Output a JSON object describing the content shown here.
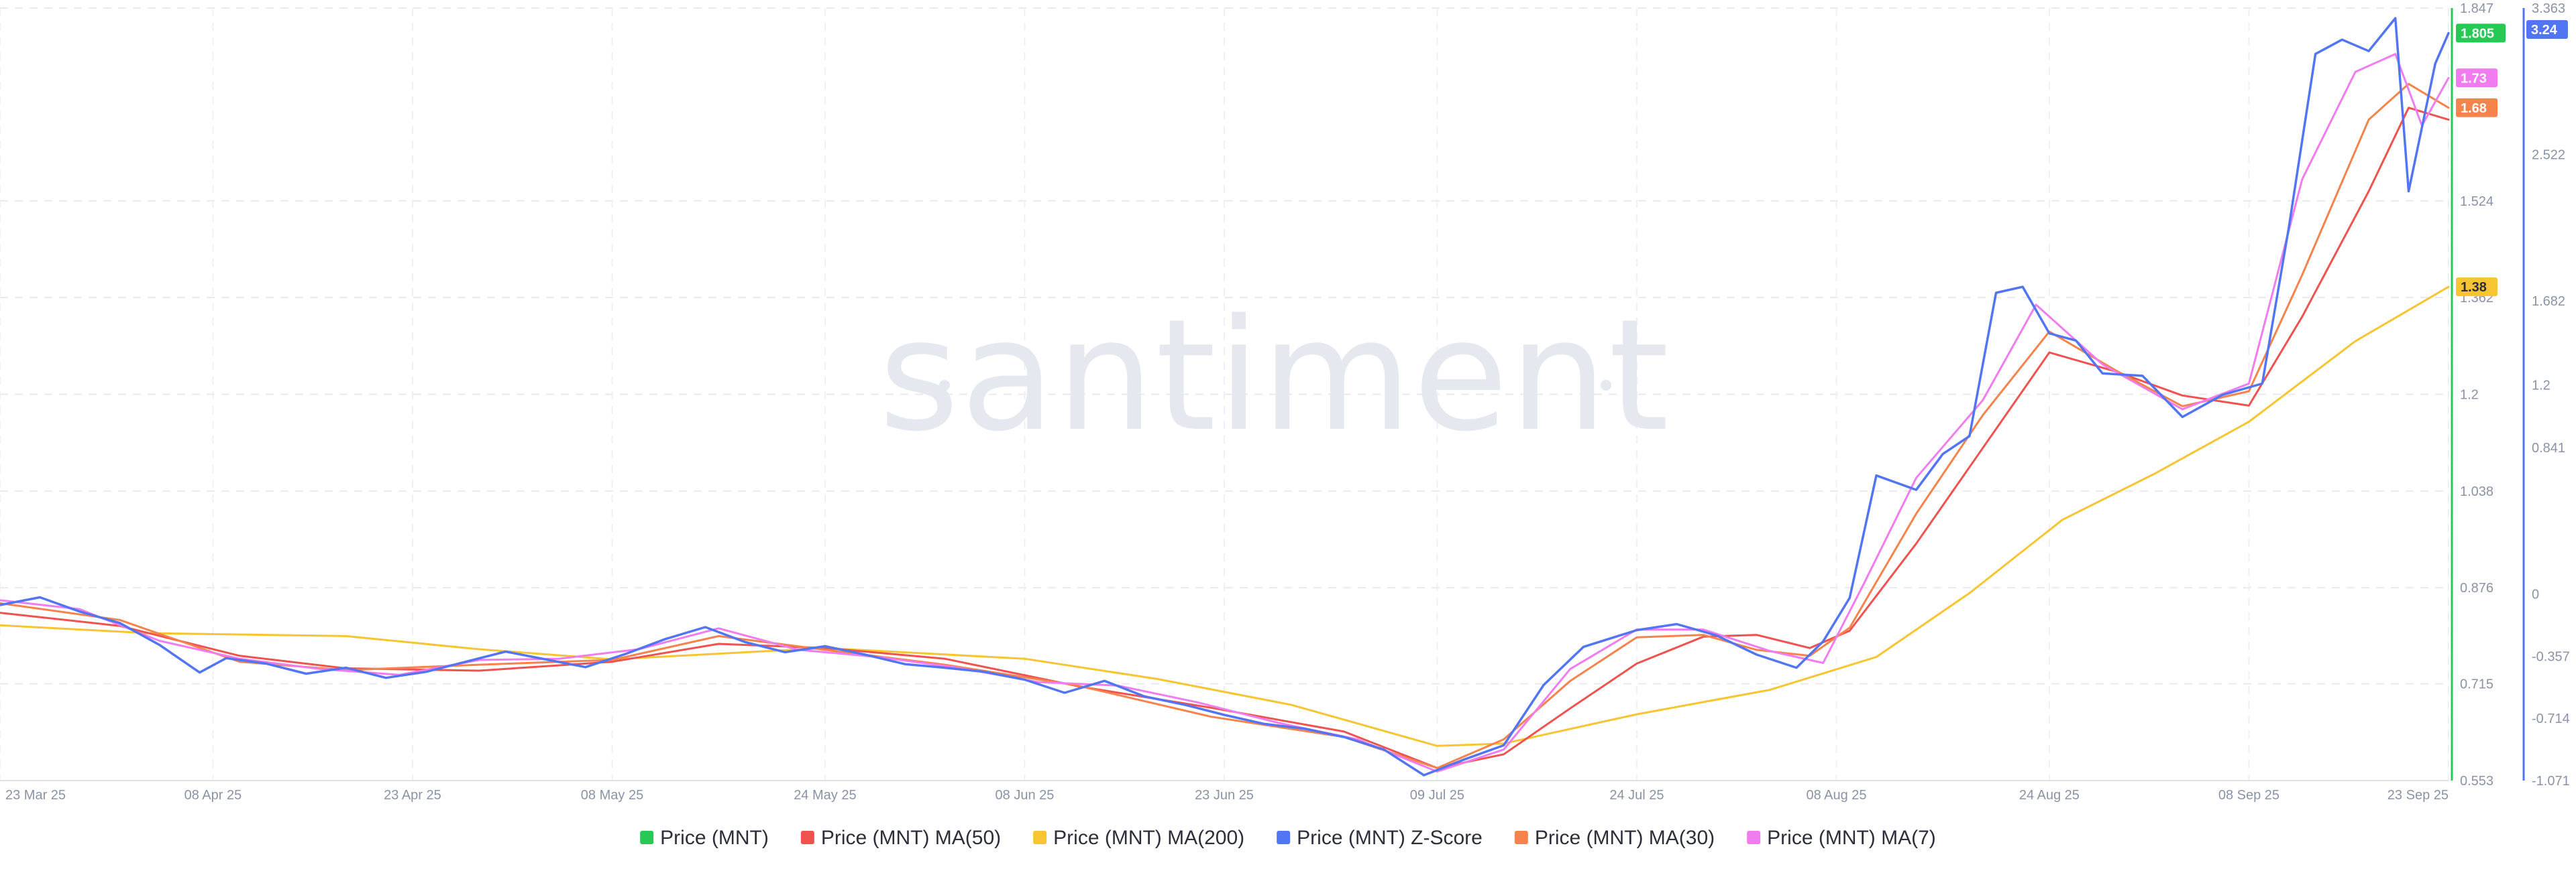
{
  "watermark": "santiment",
  "chart_data": {
    "type": "line",
    "grid": true,
    "legend_position": "bottom",
    "x_range": [
      "2025-03-23",
      "2025-09-23"
    ],
    "x_ticks": [
      {
        "date": "2025-03-23",
        "label": "23 Mar 25"
      },
      {
        "date": "2025-04-08",
        "label": "08 Apr 25"
      },
      {
        "date": "2025-04-23",
        "label": "23 Apr 25"
      },
      {
        "date": "2025-05-08",
        "label": "08 May 25"
      },
      {
        "date": "2025-05-24",
        "label": "24 May 25"
      },
      {
        "date": "2025-06-08",
        "label": "08 Jun 25"
      },
      {
        "date": "2025-06-23",
        "label": "23 Jun 25"
      },
      {
        "date": "2025-07-09",
        "label": "09 Jul 25"
      },
      {
        "date": "2025-07-24",
        "label": "24 Jul 25"
      },
      {
        "date": "2025-08-08",
        "label": "08 Aug 25"
      },
      {
        "date": "2025-08-24",
        "label": "24 Aug 25"
      },
      {
        "date": "2025-09-08",
        "label": "08 Sep 25"
      },
      {
        "date": "2025-09-23",
        "label": "23 Sep 25"
      }
    ],
    "price_axis": {
      "range": [
        0.553,
        1.847
      ],
      "ticks": [
        "0.553",
        "0.715",
        "0.876",
        "1.038",
        "1.2",
        "1.362",
        "1.524",
        "1.847"
      ],
      "color": "#26c953"
    },
    "zscore_axis": {
      "range": [
        -1.071,
        3.363
      ],
      "ticks": [
        "-1.071",
        "-0.714",
        "-0.357",
        "0",
        "0.841",
        "1.2",
        "1.682",
        "2.522",
        "3.363"
      ],
      "color": "#5275f4"
    },
    "badges": [
      {
        "text": "1.805",
        "value": 1.805,
        "axis": "price",
        "color": "#26c953"
      },
      {
        "text": "1.73",
        "value": 1.73,
        "axis": "price",
        "color": "#f07cf0"
      },
      {
        "text": "1.68",
        "value": 1.68,
        "axis": "price",
        "color": "#f5834b"
      },
      {
        "text": "1.38",
        "value": 1.38,
        "axis": "price",
        "color": "#f7c531"
      },
      {
        "text": "3.24",
        "value": 3.24,
        "axis": "zscore",
        "color": "#5275f4"
      }
    ],
    "series": [
      {
        "name": "Price (MNT)",
        "color": "#26c953",
        "axis": "price",
        "points": []
      },
      {
        "name": "Price (MNT) MA(50)",
        "color": "#f0524f",
        "axis": "price",
        "points": [
          [
            "2025-03-23",
            0.834
          ],
          [
            "2025-04-01",
            0.812
          ],
          [
            "2025-04-10",
            0.762
          ],
          [
            "2025-04-18",
            0.741
          ],
          [
            "2025-04-28",
            0.737
          ],
          [
            "2025-05-08",
            0.752
          ],
          [
            "2025-05-16",
            0.782
          ],
          [
            "2025-05-24",
            0.775
          ],
          [
            "2025-06-02",
            0.757
          ],
          [
            "2025-06-12",
            0.711
          ],
          [
            "2025-06-22",
            0.675
          ],
          [
            "2025-07-02",
            0.635
          ],
          [
            "2025-07-09",
            0.574
          ],
          [
            "2025-07-14",
            0.597
          ],
          [
            "2025-07-19",
            0.674
          ],
          [
            "2025-07-24",
            0.749
          ],
          [
            "2025-07-29",
            0.794
          ],
          [
            "2025-08-02",
            0.797
          ],
          [
            "2025-08-06",
            0.775
          ],
          [
            "2025-08-09",
            0.804
          ],
          [
            "2025-08-14",
            0.95
          ],
          [
            "2025-08-19",
            1.11
          ],
          [
            "2025-08-24",
            1.27
          ],
          [
            "2025-08-29",
            1.238
          ],
          [
            "2025-09-03",
            1.198
          ],
          [
            "2025-09-08",
            1.181
          ],
          [
            "2025-09-12",
            1.33
          ],
          [
            "2025-09-17",
            1.54
          ],
          [
            "2025-09-20",
            1.68
          ],
          [
            "2025-09-23",
            1.66
          ]
        ]
      },
      {
        "name": "Price (MNT) MA(200)",
        "color": "#f7c531",
        "axis": "price",
        "points": [
          [
            "2025-03-23",
            0.813
          ],
          [
            "2025-04-03",
            0.8
          ],
          [
            "2025-04-18",
            0.795
          ],
          [
            "2025-04-28",
            0.773
          ],
          [
            "2025-05-08",
            0.756
          ],
          [
            "2025-05-24",
            0.775
          ],
          [
            "2025-06-08",
            0.757
          ],
          [
            "2025-06-18",
            0.723
          ],
          [
            "2025-06-28",
            0.68
          ],
          [
            "2025-07-09",
            0.611
          ],
          [
            "2025-07-14",
            0.615
          ],
          [
            "2025-07-24",
            0.664
          ],
          [
            "2025-08-03",
            0.705
          ],
          [
            "2025-08-11",
            0.76
          ],
          [
            "2025-08-18",
            0.867
          ],
          [
            "2025-08-25",
            0.99
          ],
          [
            "2025-09-01",
            1.068
          ],
          [
            "2025-09-08",
            1.154
          ],
          [
            "2025-09-16",
            1.289
          ],
          [
            "2025-09-23",
            1.38
          ]
        ]
      },
      {
        "name": "Price (MNT) Z-Score",
        "color": "#5275f4",
        "axis": "price",
        "points": [
          [
            "2025-03-23",
            0.847
          ],
          [
            "2025-03-26",
            0.86
          ],
          [
            "2025-03-29",
            0.836
          ],
          [
            "2025-04-01",
            0.817
          ],
          [
            "2025-04-04",
            0.78
          ],
          [
            "2025-04-07",
            0.734
          ],
          [
            "2025-04-09",
            0.758
          ],
          [
            "2025-04-12",
            0.749
          ],
          [
            "2025-04-15",
            0.732
          ],
          [
            "2025-04-18",
            0.742
          ],
          [
            "2025-04-21",
            0.725
          ],
          [
            "2025-04-24",
            0.735
          ],
          [
            "2025-04-27",
            0.752
          ],
          [
            "2025-04-30",
            0.769
          ],
          [
            "2025-05-03",
            0.756
          ],
          [
            "2025-05-06",
            0.743
          ],
          [
            "2025-05-09",
            0.765
          ],
          [
            "2025-05-12",
            0.79
          ],
          [
            "2025-05-15",
            0.81
          ],
          [
            "2025-05-18",
            0.785
          ],
          [
            "2025-05-21",
            0.768
          ],
          [
            "2025-05-24",
            0.778
          ],
          [
            "2025-05-27",
            0.764
          ],
          [
            "2025-05-30",
            0.748
          ],
          [
            "2025-06-02",
            0.742
          ],
          [
            "2025-06-05",
            0.735
          ],
          [
            "2025-06-08",
            0.722
          ],
          [
            "2025-06-11",
            0.7
          ],
          [
            "2025-06-14",
            0.72
          ],
          [
            "2025-06-17",
            0.694
          ],
          [
            "2025-06-20",
            0.68
          ],
          [
            "2025-06-23",
            0.663
          ],
          [
            "2025-06-26",
            0.648
          ],
          [
            "2025-06-29",
            0.64
          ],
          [
            "2025-07-02",
            0.626
          ],
          [
            "2025-07-05",
            0.605
          ],
          [
            "2025-07-08",
            0.562
          ],
          [
            "2025-07-11",
            0.588
          ],
          [
            "2025-07-14",
            0.612
          ],
          [
            "2025-07-17",
            0.713
          ],
          [
            "2025-07-20",
            0.777
          ],
          [
            "2025-07-24",
            0.805
          ],
          [
            "2025-07-27",
            0.815
          ],
          [
            "2025-07-30",
            0.796
          ],
          [
            "2025-08-02",
            0.764
          ],
          [
            "2025-08-05",
            0.742
          ],
          [
            "2025-08-07",
            0.786
          ],
          [
            "2025-08-09",
            0.859
          ],
          [
            "2025-08-11",
            1.064
          ],
          [
            "2025-08-14",
            1.04
          ],
          [
            "2025-08-16",
            1.1
          ],
          [
            "2025-08-18",
            1.13
          ],
          [
            "2025-08-20",
            1.37
          ],
          [
            "2025-08-22",
            1.38
          ],
          [
            "2025-08-24",
            1.302
          ],
          [
            "2025-08-26",
            1.29
          ],
          [
            "2025-08-28",
            1.235
          ],
          [
            "2025-08-31",
            1.231
          ],
          [
            "2025-09-03",
            1.162
          ],
          [
            "2025-09-06",
            1.199
          ],
          [
            "2025-09-09",
            1.218
          ],
          [
            "2025-09-11",
            1.48
          ],
          [
            "2025-09-13",
            1.77
          ],
          [
            "2025-09-15",
            1.794
          ],
          [
            "2025-09-17",
            1.775
          ],
          [
            "2025-09-19",
            1.83
          ],
          [
            "2025-09-20",
            1.54
          ],
          [
            "2025-09-22",
            1.754
          ],
          [
            "2025-09-23",
            1.805
          ]
        ]
      },
      {
        "name": "Price (MNT) MA(30)",
        "color": "#f5834b",
        "axis": "price",
        "points": [
          [
            "2025-03-23",
            0.85
          ],
          [
            "2025-04-01",
            0.822
          ],
          [
            "2025-04-10",
            0.752
          ],
          [
            "2025-04-18",
            0.738
          ],
          [
            "2025-04-28",
            0.747
          ],
          [
            "2025-05-08",
            0.755
          ],
          [
            "2025-05-16",
            0.795
          ],
          [
            "2025-05-24",
            0.772
          ],
          [
            "2025-06-02",
            0.747
          ],
          [
            "2025-06-12",
            0.712
          ],
          [
            "2025-06-22",
            0.66
          ],
          [
            "2025-07-02",
            0.626
          ],
          [
            "2025-07-09",
            0.574
          ],
          [
            "2025-07-14",
            0.622
          ],
          [
            "2025-07-19",
            0.72
          ],
          [
            "2025-07-24",
            0.793
          ],
          [
            "2025-07-29",
            0.797
          ],
          [
            "2025-08-02",
            0.772
          ],
          [
            "2025-08-06",
            0.762
          ],
          [
            "2025-08-09",
            0.809
          ],
          [
            "2025-08-14",
            1.0
          ],
          [
            "2025-08-19",
            1.165
          ],
          [
            "2025-08-24",
            1.305
          ],
          [
            "2025-08-29",
            1.24
          ],
          [
            "2025-09-03",
            1.18
          ],
          [
            "2025-09-08",
            1.205
          ],
          [
            "2025-09-12",
            1.4
          ],
          [
            "2025-09-17",
            1.66
          ],
          [
            "2025-09-20",
            1.72
          ],
          [
            "2025-09-23",
            1.68
          ]
        ]
      },
      {
        "name": "Price (MNT) MA(7)",
        "color": "#f07cf0",
        "axis": "price",
        "points": [
          [
            "2025-03-23",
            0.855
          ],
          [
            "2025-03-29",
            0.84
          ],
          [
            "2025-04-04",
            0.787
          ],
          [
            "2025-04-10",
            0.757
          ],
          [
            "2025-04-16",
            0.74
          ],
          [
            "2025-04-22",
            0.73
          ],
          [
            "2025-04-28",
            0.755
          ],
          [
            "2025-05-04",
            0.757
          ],
          [
            "2025-05-10",
            0.773
          ],
          [
            "2025-05-16",
            0.808
          ],
          [
            "2025-05-22",
            0.772
          ],
          [
            "2025-05-28",
            0.76
          ],
          [
            "2025-06-03",
            0.742
          ],
          [
            "2025-06-09",
            0.718
          ],
          [
            "2025-06-15",
            0.712
          ],
          [
            "2025-06-21",
            0.684
          ],
          [
            "2025-06-27",
            0.65
          ],
          [
            "2025-07-03",
            0.622
          ],
          [
            "2025-07-09",
            0.568
          ],
          [
            "2025-07-14",
            0.605
          ],
          [
            "2025-07-19",
            0.74
          ],
          [
            "2025-07-24",
            0.806
          ],
          [
            "2025-07-29",
            0.806
          ],
          [
            "2025-08-03",
            0.77
          ],
          [
            "2025-08-07",
            0.75
          ],
          [
            "2025-08-10",
            0.88
          ],
          [
            "2025-08-14",
            1.06
          ],
          [
            "2025-08-19",
            1.19
          ],
          [
            "2025-08-23",
            1.35
          ],
          [
            "2025-08-28",
            1.25
          ],
          [
            "2025-09-03",
            1.175
          ],
          [
            "2025-09-08",
            1.218
          ],
          [
            "2025-09-12",
            1.56
          ],
          [
            "2025-09-16",
            1.74
          ],
          [
            "2025-09-19",
            1.77
          ],
          [
            "2025-09-21",
            1.65
          ],
          [
            "2025-09-23",
            1.73
          ]
        ]
      }
    ]
  }
}
